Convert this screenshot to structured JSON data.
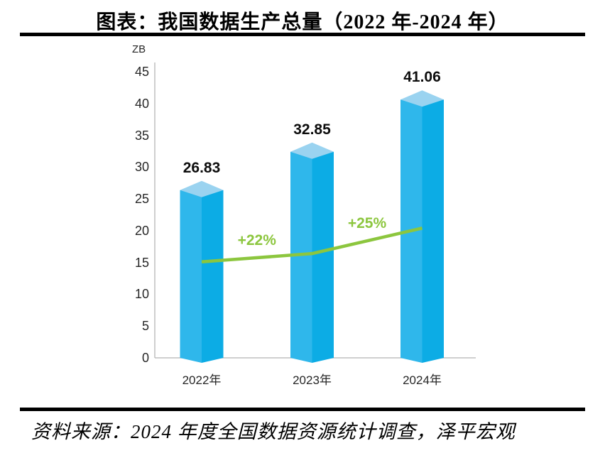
{
  "page": {
    "title": "图表：我国数据生产总量（2022 年-2024 年）",
    "source": "资料来源：2024 年度全国数据资源统计调查，泽平宏观"
  },
  "chart_data": {
    "type": "bar",
    "title": "图表：我国数据生产总量（2022 年-2024 年）",
    "unit_label": "ZB",
    "categories": [
      "2022年",
      "2023年",
      "2024年"
    ],
    "values": [
      26.83,
      32.85,
      41.06
    ],
    "value_labels": [
      "26.83",
      "32.85",
      "41.06"
    ],
    "growth_labels": [
      "+22%",
      "+25%"
    ],
    "growth_values_percent": [
      22,
      25
    ],
    "line_points_zb": [
      15.1,
      16.4,
      20.4
    ],
    "ylabel": "",
    "xlabel": "",
    "ylim": [
      0,
      45
    ],
    "ytick_step": 5,
    "yticks": [
      "0",
      "5",
      "10",
      "15",
      "20",
      "25",
      "30",
      "35",
      "40",
      "45"
    ],
    "grid": false,
    "legend_position": "none",
    "colors": {
      "bar_front_left": "#2FB7EB",
      "bar_front_right": "#0CACE5",
      "bar_top": "#9AD3F0",
      "line": "#8CC63E",
      "growth_label": "#8CC63E",
      "axis": "#BFBFBF",
      "tick_text": "#262626",
      "value_text": "#0D0D0D"
    }
  }
}
